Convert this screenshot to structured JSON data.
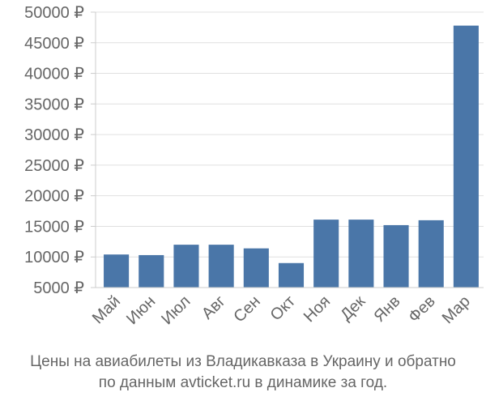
{
  "chart_data": {
    "type": "bar",
    "categories": [
      "Май",
      "Июн",
      "Июл",
      "Авг",
      "Сен",
      "Окт",
      "Ноя",
      "Дек",
      "Янв",
      "Фев",
      "Мар"
    ],
    "values": [
      10400,
      10300,
      12000,
      12000,
      11400,
      9000,
      16100,
      16100,
      15200,
      16000,
      47800
    ],
    "ylim": [
      5000,
      50000
    ],
    "yticks": [
      5000,
      10000,
      15000,
      20000,
      25000,
      30000,
      35000,
      40000,
      45000,
      50000
    ],
    "y_tick_suffix": " ₽",
    "grid": true,
    "bar_color": "#4a76a8",
    "grid_color": "#e0e0e0"
  },
  "caption": {
    "line1": "Цены на авиабилеты из Владикавказа в Украину и обратно",
    "line2": "по данным avticket.ru в динамике за год."
  }
}
